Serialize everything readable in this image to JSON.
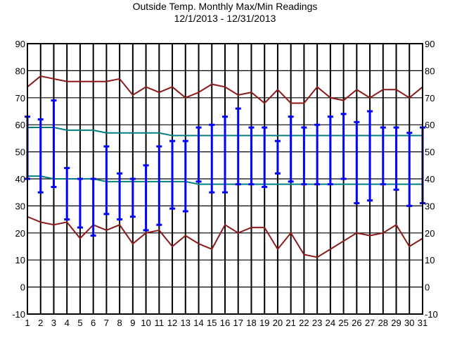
{
  "chart_data": {
    "type": "line",
    "title": "Outside Temp. Monthly Max/Min Readings",
    "subtitle": "12/1/2013 - 12/31/2013",
    "xlabel": "",
    "ylabel": "",
    "x": [
      1,
      2,
      3,
      4,
      5,
      6,
      7,
      8,
      9,
      10,
      11,
      12,
      13,
      14,
      15,
      16,
      17,
      18,
      19,
      20,
      21,
      22,
      23,
      24,
      25,
      26,
      27,
      28,
      29,
      30,
      31
    ],
    "xlim": [
      1,
      31
    ],
    "ylim": [
      -10,
      90
    ],
    "yticks": [
      -10,
      0,
      10,
      20,
      30,
      40,
      50,
      60,
      70,
      80,
      90
    ],
    "grid": true,
    "series": [
      {
        "kind": "line",
        "color": "#8b1a1a",
        "values": [
          74,
          78,
          77,
          76,
          76,
          76,
          76,
          77,
          71,
          74,
          72,
          74,
          70,
          72,
          75,
          74,
          71,
          72,
          68,
          73,
          68,
          68,
          74,
          70,
          69,
          73,
          70,
          73,
          73,
          70,
          74
        ]
      },
      {
        "kind": "line",
        "color": "#008080",
        "values": [
          59,
          59,
          59,
          58,
          58,
          58,
          57,
          57,
          57,
          57,
          57,
          56,
          56,
          56,
          56,
          56,
          56,
          56,
          56,
          56,
          56,
          56,
          56,
          56,
          56,
          56,
          56,
          56,
          56,
          56,
          56
        ]
      },
      {
        "kind": "line",
        "color": "#008080",
        "values": [
          41,
          41,
          40,
          40,
          40,
          40,
          39,
          39,
          39,
          39,
          39,
          39,
          39,
          38,
          38,
          38,
          38,
          38,
          38,
          38,
          38,
          38,
          38,
          38,
          38,
          38,
          38,
          38,
          38,
          38,
          38
        ]
      },
      {
        "kind": "line",
        "color": "#8b1a1a",
        "values": [
          26,
          24,
          23,
          24,
          18,
          23,
          21,
          23,
          16,
          20,
          21,
          15,
          19,
          16,
          14,
          23,
          20,
          22,
          22,
          14,
          20,
          12,
          11,
          14,
          17,
          20,
          19,
          20,
          23,
          15,
          18
        ]
      },
      {
        "kind": "range",
        "color": "#0000ff",
        "high": [
          63,
          62,
          69,
          44,
          40,
          40,
          52,
          42,
          40,
          45,
          52,
          54,
          54,
          59,
          60,
          63,
          66,
          59,
          59,
          54,
          63,
          59,
          60,
          63,
          64,
          61,
          65,
          59,
          59,
          57,
          59
        ],
        "low": [
          40,
          35,
          37,
          25,
          22,
          19,
          27,
          25,
          26,
          21,
          23,
          29,
          28,
          39,
          35,
          35,
          38,
          38,
          37,
          42,
          39,
          38,
          38,
          38,
          40,
          31,
          32,
          38,
          36,
          30,
          31
        ]
      }
    ]
  }
}
